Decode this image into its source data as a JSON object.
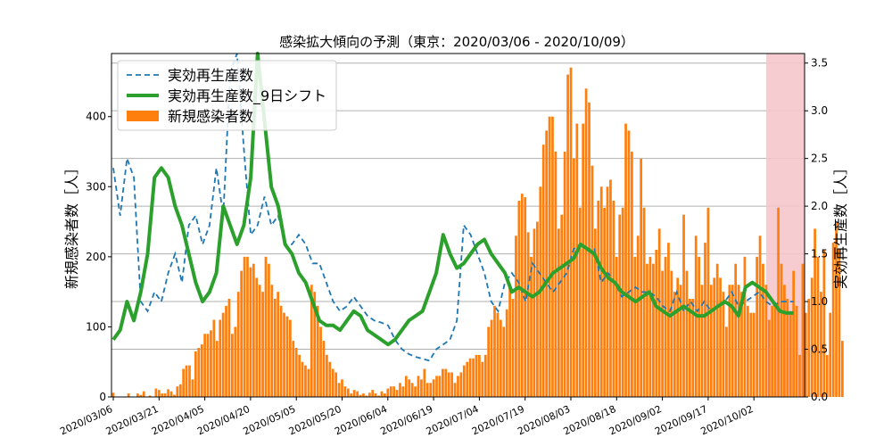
{
  "chart_data": {
    "type": "bar",
    "title": "感染拡大傾向の予測（東京：2020/03/06 - 2020/10/09）",
    "ylabel_left": "新規感染者数［人］",
    "ylabel_right": "実効再生産数［人］",
    "start_date": "2020-03-06",
    "end_date": "2020-10-09",
    "ylim_left": [
      0,
      490
    ],
    "ylim_right": [
      0,
      3.6
    ],
    "left_ticks": [
      "0",
      "100",
      "200",
      "300",
      "400"
    ],
    "right_ticks": [
      "0.0",
      "0.5",
      "1.0",
      "1.5",
      "2.0",
      "2.5",
      "3.0",
      "3.5"
    ],
    "x_ticks": [
      "2020/03/06",
      "2020/03/21",
      "2020/04/05",
      "2020/04/20",
      "2020/05/05",
      "2020/05/20",
      "2020/06/04",
      "2020/06/19",
      "2020/07/04",
      "2020/07/19",
      "2020/08/03",
      "2020/08/18",
      "2020/09/02",
      "2020/09/17",
      "2020/10/02"
    ],
    "grid": true,
    "legend_position": "top-left",
    "forecast_region": [
      "2020-10-06",
      "2020-10-15"
    ],
    "colors": {
      "bars": "#ff7f0e",
      "rt": "#1f77b4",
      "rt_shift": "#2ca02c",
      "forecast": "#f5c6cb"
    },
    "series": [
      {
        "name": "新規感染者数",
        "kind": "bar",
        "axis": "left",
        "values": [
          6,
          0,
          0,
          0,
          0,
          5,
          0,
          0,
          5,
          3,
          8,
          0,
          2,
          0,
          12,
          10,
          5,
          5,
          11,
          8,
          3,
          15,
          18,
          40,
          45,
          45,
          25,
          65,
          70,
          75,
          90,
          90,
          95,
          110,
          80,
          110,
          120,
          130,
          140,
          90,
          100,
          150,
          180,
          200,
          200,
          185,
          190,
          170,
          160,
          150,
          200,
          190,
          160,
          140,
          150,
          130,
          120,
          115,
          110,
          80,
          70,
          60,
          50,
          45,
          40,
          160,
          150,
          130,
          100,
          80,
          60,
          50,
          40,
          35,
          20,
          25,
          15,
          12,
          5,
          10,
          8,
          3,
          5,
          2,
          6,
          10,
          5,
          2,
          8,
          5,
          12,
          15,
          15,
          10,
          20,
          15,
          30,
          25,
          20,
          15,
          30,
          25,
          40,
          20,
          20,
          25,
          30,
          30,
          40,
          40,
          35,
          35,
          20,
          30,
          35,
          45,
          50,
          55,
          55,
          60,
          60,
          50,
          60,
          100,
          110,
          130,
          120,
          110,
          100,
          125,
          160,
          140,
          230,
          280,
          290,
          285,
          235,
          200,
          240,
          250,
          300,
          360,
          380,
          400,
          400,
          350,
          240,
          260,
          350,
          460,
          470,
          340,
          390,
          270,
          390,
          440,
          420,
          330,
          240,
          280,
          300,
          270,
          300,
          310,
          280,
          200,
          260,
          270,
          390,
          380,
          350,
          200,
          230,
          340,
          270,
          190,
          200,
          190,
          210,
          240,
          180,
          200,
          220,
          180,
          150,
          170,
          160,
          260,
          180,
          140,
          140,
          230,
          200,
          160,
          220,
          270,
          160,
          170,
          190,
          170,
          150,
          100,
          160,
          160,
          190,
          160,
          150,
          200,
          130,
          120,
          120,
          200,
          230,
          190,
          160,
          110,
          130,
          130,
          270,
          190,
          160,
          140,
          120,
          180,
          130,
          60,
          190,
          120,
          140,
          170,
          240,
          200,
          150,
          210,
          60,
          120,
          220,
          250,
          210,
          80
        ]
      },
      {
        "name": "実効再生産数",
        "kind": "line-dashed",
        "axis": "right",
        "points": [
          [
            0,
            2.4
          ],
          [
            1,
            1.9
          ],
          [
            2,
            2.5
          ],
          [
            3,
            2.3
          ],
          [
            4,
            1.0
          ],
          [
            5,
            0.9
          ],
          [
            6,
            1.1
          ],
          [
            7,
            1.0
          ],
          [
            8,
            1.3
          ],
          [
            9,
            1.5
          ],
          [
            10,
            1.2
          ],
          [
            11,
            1.8
          ],
          [
            12,
            1.9
          ],
          [
            13,
            1.6
          ],
          [
            14,
            1.8
          ],
          [
            15,
            2.4
          ],
          [
            16,
            1.9
          ],
          [
            17,
            3.4
          ],
          [
            18,
            3.7
          ],
          [
            19,
            2.6
          ],
          [
            20,
            1.7
          ],
          [
            21,
            1.8
          ],
          [
            22,
            2.1
          ],
          [
            23,
            1.8
          ],
          [
            24,
            1.9
          ],
          [
            25,
            1.6
          ],
          [
            26,
            1.6
          ],
          [
            27,
            1.7
          ],
          [
            28,
            1.6
          ],
          [
            29,
            1.4
          ],
          [
            30,
            1.4
          ],
          [
            31,
            1.2
          ],
          [
            32,
            1.0
          ],
          [
            33,
            0.9
          ],
          [
            34,
            0.95
          ],
          [
            35,
            1.05
          ],
          [
            36,
            0.95
          ],
          [
            37,
            0.85
          ],
          [
            38,
            0.8
          ],
          [
            39,
            0.78
          ],
          [
            40,
            0.75
          ],
          [
            41,
            0.6
          ],
          [
            42,
            0.5
          ],
          [
            43,
            0.45
          ],
          [
            44,
            0.42
          ],
          [
            45,
            0.4
          ],
          [
            46,
            0.38
          ],
          [
            47,
            0.5
          ],
          [
            48,
            0.55
          ],
          [
            49,
            0.6
          ],
          [
            50,
            0.8
          ],
          [
            51,
            1.8
          ],
          [
            52,
            1.7
          ],
          [
            53,
            1.5
          ],
          [
            54,
            1.3
          ],
          [
            55,
            1.0
          ],
          [
            56,
            0.9
          ],
          [
            57,
            1.2
          ],
          [
            58,
            1.3
          ],
          [
            59,
            1.2
          ],
          [
            60,
            1.0
          ],
          [
            61,
            1.4
          ],
          [
            62,
            1.3
          ],
          [
            63,
            1.2
          ],
          [
            64,
            1.1
          ],
          [
            65,
            1.2
          ],
          [
            66,
            1.3
          ],
          [
            67,
            1.55
          ],
          [
            68,
            1.6
          ],
          [
            69,
            1.55
          ],
          [
            70,
            1.55
          ],
          [
            71,
            1.2
          ],
          [
            72,
            1.3
          ],
          [
            73,
            1.2
          ],
          [
            74,
            1.05
          ],
          [
            75,
            1.1
          ],
          [
            76,
            1.15
          ],
          [
            77,
            1.1
          ],
          [
            78,
            1.1
          ],
          [
            79,
            1.05
          ],
          [
            80,
            0.95
          ],
          [
            81,
            0.9
          ],
          [
            82,
            1.1
          ],
          [
            83,
            0.9
          ],
          [
            84,
            1.0
          ],
          [
            85,
            0.9
          ],
          [
            86,
            1.0
          ],
          [
            87,
            0.9
          ],
          [
            88,
            0.95
          ],
          [
            89,
            1.0
          ],
          [
            90,
            1.1
          ],
          [
            91,
            0.95
          ],
          [
            92,
            1.0
          ],
          [
            93,
            1.05
          ],
          [
            94,
            1.1
          ],
          [
            95,
            1.0
          ],
          [
            96,
            0.95
          ],
          [
            97,
            1.0
          ],
          [
            98,
            1.0
          ],
          [
            99,
            1.0
          ]
        ]
      },
      {
        "name": "実効再生産数_9日シフト",
        "kind": "line",
        "axis": "right",
        "points": [
          [
            0,
            0.6
          ],
          [
            1,
            0.7
          ],
          [
            2,
            1.0
          ],
          [
            3,
            0.8
          ],
          [
            4,
            1.1
          ],
          [
            5,
            1.5
          ],
          [
            6,
            2.3
          ],
          [
            7,
            2.4
          ],
          [
            8,
            2.3
          ],
          [
            9,
            2.0
          ],
          [
            10,
            1.8
          ],
          [
            11,
            1.5
          ],
          [
            12,
            1.2
          ],
          [
            13,
            1.0
          ],
          [
            14,
            1.1
          ],
          [
            15,
            1.3
          ],
          [
            16,
            2.0
          ],
          [
            17,
            1.8
          ],
          [
            18,
            1.6
          ],
          [
            19,
            1.8
          ],
          [
            20,
            2.3
          ],
          [
            21,
            3.6
          ],
          [
            22,
            2.9
          ],
          [
            23,
            2.2
          ],
          [
            24,
            2.0
          ],
          [
            25,
            1.6
          ],
          [
            26,
            1.5
          ],
          [
            27,
            1.3
          ],
          [
            28,
            1.2
          ],
          [
            29,
            1.0
          ],
          [
            30,
            0.8
          ],
          [
            31,
            0.75
          ],
          [
            32,
            0.75
          ],
          [
            33,
            0.7
          ],
          [
            34,
            0.8
          ],
          [
            35,
            0.9
          ],
          [
            36,
            0.85
          ],
          [
            37,
            0.7
          ],
          [
            38,
            0.65
          ],
          [
            39,
            0.6
          ],
          [
            40,
            0.55
          ],
          [
            41,
            0.6
          ],
          [
            42,
            0.7
          ],
          [
            43,
            0.8
          ],
          [
            44,
            0.85
          ],
          [
            45,
            0.9
          ],
          [
            46,
            1.1
          ],
          [
            47,
            1.3
          ],
          [
            48,
            1.7
          ],
          [
            49,
            1.5
          ],
          [
            50,
            1.35
          ],
          [
            51,
            1.4
          ],
          [
            52,
            1.5
          ],
          [
            53,
            1.6
          ],
          [
            54,
            1.65
          ],
          [
            55,
            1.5
          ],
          [
            56,
            1.4
          ],
          [
            57,
            1.3
          ],
          [
            58,
            1.1
          ],
          [
            59,
            1.15
          ],
          [
            60,
            1.1
          ],
          [
            61,
            1.05
          ],
          [
            62,
            1.1
          ],
          [
            63,
            1.2
          ],
          [
            64,
            1.3
          ],
          [
            65,
            1.35
          ],
          [
            66,
            1.4
          ],
          [
            67,
            1.45
          ],
          [
            68,
            1.6
          ],
          [
            69,
            1.55
          ],
          [
            70,
            1.5
          ],
          [
            71,
            1.35
          ],
          [
            72,
            1.25
          ],
          [
            73,
            1.2
          ],
          [
            74,
            1.1
          ],
          [
            75,
            1.05
          ],
          [
            76,
            1.0
          ],
          [
            77,
            1.05
          ],
          [
            78,
            1.1
          ],
          [
            79,
            0.95
          ],
          [
            80,
            0.9
          ],
          [
            81,
            0.85
          ],
          [
            82,
            0.9
          ],
          [
            83,
            0.95
          ],
          [
            84,
            0.9
          ],
          [
            85,
            0.85
          ],
          [
            86,
            0.85
          ],
          [
            87,
            0.9
          ],
          [
            88,
            0.95
          ],
          [
            89,
            1.0
          ],
          [
            90,
            0.95
          ],
          [
            91,
            0.85
          ],
          [
            92,
            1.15
          ],
          [
            93,
            1.2
          ],
          [
            94,
            1.15
          ],
          [
            95,
            1.1
          ],
          [
            96,
            1.0
          ],
          [
            97,
            0.9
          ],
          [
            98,
            0.88
          ],
          [
            99,
            0.88
          ]
        ]
      }
    ]
  }
}
